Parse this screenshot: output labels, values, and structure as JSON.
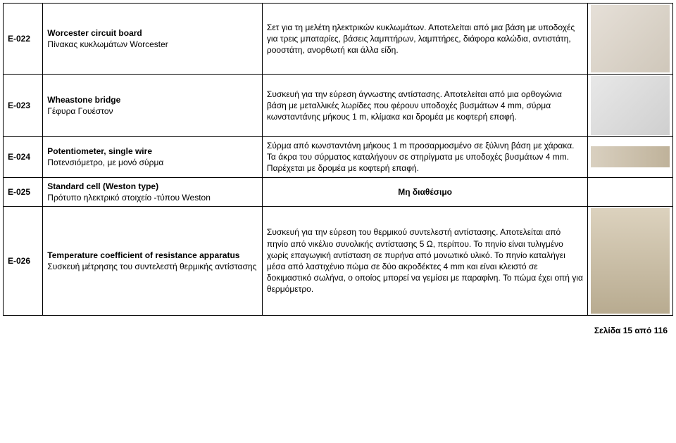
{
  "rows": [
    {
      "code": "E-022",
      "name_bold": "Worcester circuit board",
      "name_rest": "Πίνακας κυκλωμάτων Worcester",
      "desc": "Σετ για τη μελέτη ηλεκτρικών κυκλωμάτων. Αποτελείται από μια  βάση με υποδοχές για τρεις μπαταρίες, βάσεις λαμπτήρων, λαμπτήρες, διάφορα καλώδια, αντιστάτη, ροοστάτη, ανορθωτή και άλλα είδη.",
      "center": false,
      "img_class": "ph-h1"
    },
    {
      "code": "E-023",
      "name_bold": "Wheastone bridge",
      "name_rest": "Γέφυρα Γουέστον",
      "desc": "Συσκευή για την εύρεση άγνωστης αντίστασης. Αποτελείται από μια ορθογώνια βάση με μεταλλικές λωρίδες που φέρουν υποδοχές βυσμάτων 4 mm, σύρμα κωνσταντάνης μήκους 1 m, κλίμακα και δρομέα με κοφτερή επαφή.",
      "center": false,
      "img_class": "ph-h2"
    },
    {
      "code": "E-024",
      "name_bold": "Potentiometer, single wire",
      "name_rest": "Ποτενσιόμετρο, με μονό σύρμα",
      "desc": "Σύρμα από κωνσταντάνη μήκους 1 m προσαρμοσμένο σε ξύλινη βάση με χάρακα. Τα άκρα του σύρματος καταλήγουν σε στηρίγματα με υποδοχές βυσμάτων 4 mm. Παρέχεται με δρομέα με κοφτερή επαφή.",
      "center": false,
      "img_class": "ph-h3"
    },
    {
      "code": "E-025",
      "name_bold": "Standard cell (Weston type)",
      "name_rest": "Πρότυπο ηλεκτρικό στοιχείο -τύπου Weston",
      "desc": "Μη διαθέσιμο",
      "center": true,
      "img_class": ""
    },
    {
      "code": "E-026",
      "name_bold": "Temperature coefficient of resistance apparatus",
      "name_rest": "Συσκευή μέτρησης του συντελεστή θερμικής αντίστασης",
      "desc": "Συσκευή για την εύρεση του θερμικού συντελεστή αντίστασης. Αποτελείται από πηνίο από νικέλιο συνολικής αντίστασης 5 Ω, περίπου. Το πηνίο είναι τυλιγμένο χωρίς επαγωγική αντίσταση σε πυρήνα από μονωτικό υλικό. Το πηνίο καταλήγει μέσα από λαστιχένιο πώμα σε δύο ακροδέκτες 4 mm και είναι κλειστό σε δοκιμαστικό σωλήνα, ο οποίος μπορεί να γεμίσει με παραφίνη. Το πώμα έχει οπή για θερμόμετρο.",
      "center": false,
      "img_class": "ph-h4"
    }
  ],
  "footer": "Σελίδα 15 από 116"
}
